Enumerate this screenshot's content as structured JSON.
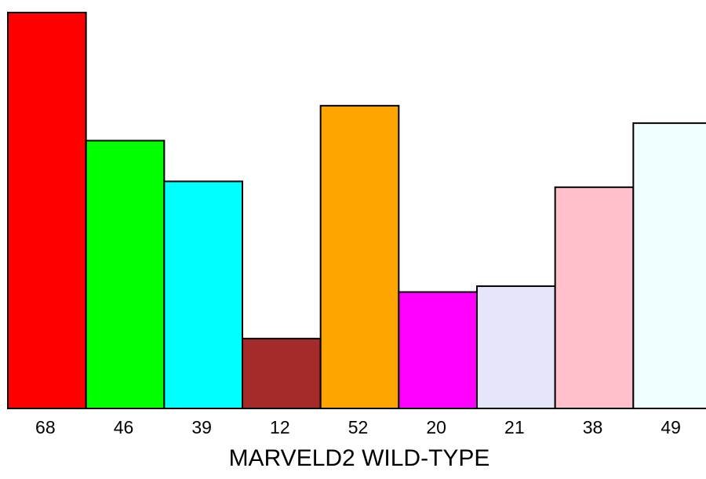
{
  "chart_data": {
    "type": "bar",
    "title": "",
    "xlabel": "MARVELD2 WILD-TYPE",
    "ylabel": "",
    "categories": [
      "68",
      "46",
      "39",
      "12",
      "52",
      "20",
      "21",
      "38",
      "49"
    ],
    "values": [
      68,
      46,
      39,
      12,
      52,
      20,
      21,
      38,
      49
    ],
    "colors": [
      "#ff0000",
      "#00ff00",
      "#00ffff",
      "#a52a2a",
      "#ffa500",
      "#ff00ff",
      "#e6e6fa",
      "#ffc0cb",
      "#f0ffff"
    ],
    "ylim": [
      0,
      68
    ],
    "grid": false,
    "legend": "none"
  }
}
